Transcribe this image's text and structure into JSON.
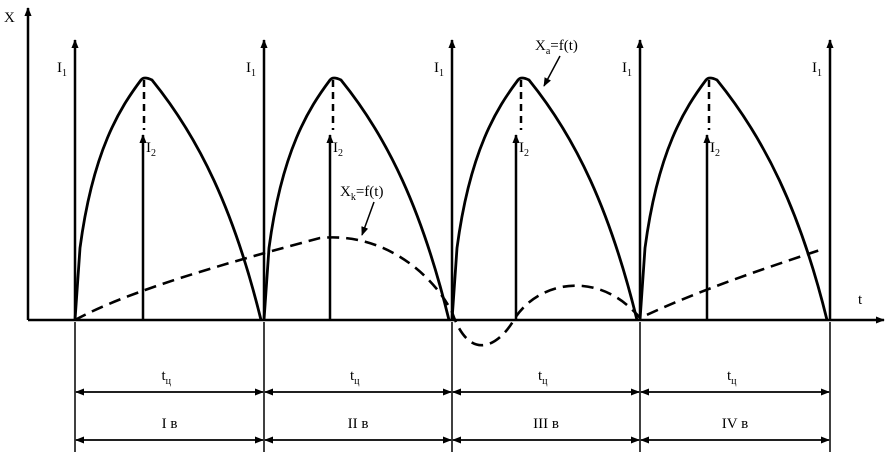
{
  "axes": {
    "y_label": "X",
    "x_label": "t"
  },
  "pulse_label": {
    "base": "I",
    "sub": "1"
  },
  "pulse2_label": {
    "base": "I",
    "sub": "2"
  },
  "curve_a_label": {
    "base": "X",
    "sub": "a",
    "rest": "=f(t)"
  },
  "curve_k_label": {
    "base": "X",
    "sub": "k",
    "rest": "=f(t)"
  },
  "cycle_label": "t",
  "cycle_sub": "ц",
  "periods": [
    "I в",
    "II в",
    "III в",
    "IV в"
  ],
  "colors": {
    "ink": "#000000",
    "background": "#ffffff"
  }
}
